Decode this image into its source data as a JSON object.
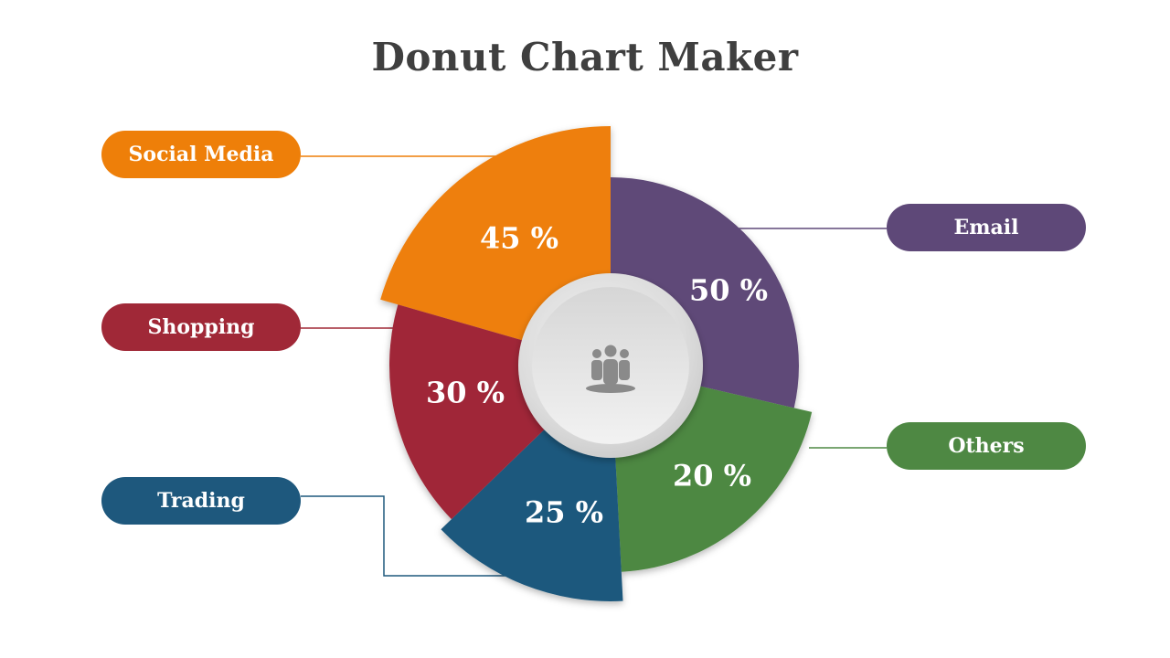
{
  "title": "Donut Chart Maker",
  "center_icon": "people-group-icon",
  "chart_data": {
    "type": "pie",
    "title": "Donut Chart Maker",
    "slices": [
      {
        "label": "Social Media",
        "value": 45,
        "display": "45 %",
        "color": "#EE7F09"
      },
      {
        "label": "Email",
        "value": 50,
        "display": "50 %",
        "color": "#5E4878"
      },
      {
        "label": "Others",
        "value": 20,
        "display": "20 %",
        "color": "#4E8843"
      },
      {
        "label": "Trading",
        "value": 25,
        "display": "25 %",
        "color": "#1E587D"
      },
      {
        "label": "Shopping",
        "value": 30,
        "display": "30 %",
        "color": "#A02837"
      }
    ]
  }
}
